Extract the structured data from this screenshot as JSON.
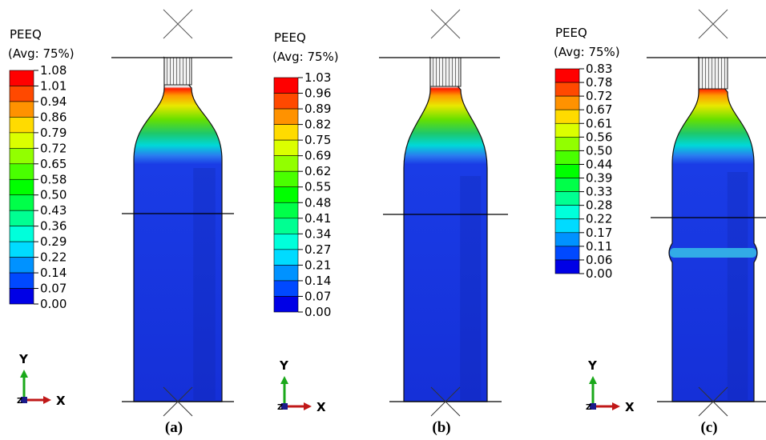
{
  "panels": [
    {
      "legend_title": "PEEQ",
      "legend_subtitle": "(Avg: 75%)",
      "legend_labels": [
        "1.08",
        "1.01",
        "0.94",
        "0.86",
        "0.79",
        "0.72",
        "0.65",
        "0.58",
        "0.50",
        "0.43",
        "0.36",
        "0.29",
        "0.22",
        "0.14",
        "0.07",
        "0.00"
      ],
      "axis_y": "Y",
      "axis_z": "Z",
      "axis_x": "X",
      "caption": "(a)"
    },
    {
      "legend_title": "PEEQ",
      "legend_subtitle": "(Avg: 75%)",
      "legend_labels": [
        "1.03",
        "0.96",
        "0.89",
        "0.82",
        "0.75",
        "0.69",
        "0.62",
        "0.55",
        "0.48",
        "0.41",
        "0.34",
        "0.27",
        "0.21",
        "0.14",
        "0.07",
        "0.00"
      ],
      "axis_y": "Y",
      "axis_z": "Z",
      "axis_x": "X",
      "caption": "(b)"
    },
    {
      "legend_title": "PEEQ",
      "legend_subtitle": "(Avg: 75%)",
      "legend_labels": [
        "0.83",
        "0.78",
        "0.72",
        "0.67",
        "0.61",
        "0.56",
        "0.50",
        "0.44",
        "0.39",
        "0.33",
        "0.28",
        "0.22",
        "0.17",
        "0.11",
        "0.06",
        "0.00"
      ],
      "axis_y": "Y",
      "axis_z": "Z",
      "axis_x": "X",
      "caption": "(c)"
    }
  ]
}
